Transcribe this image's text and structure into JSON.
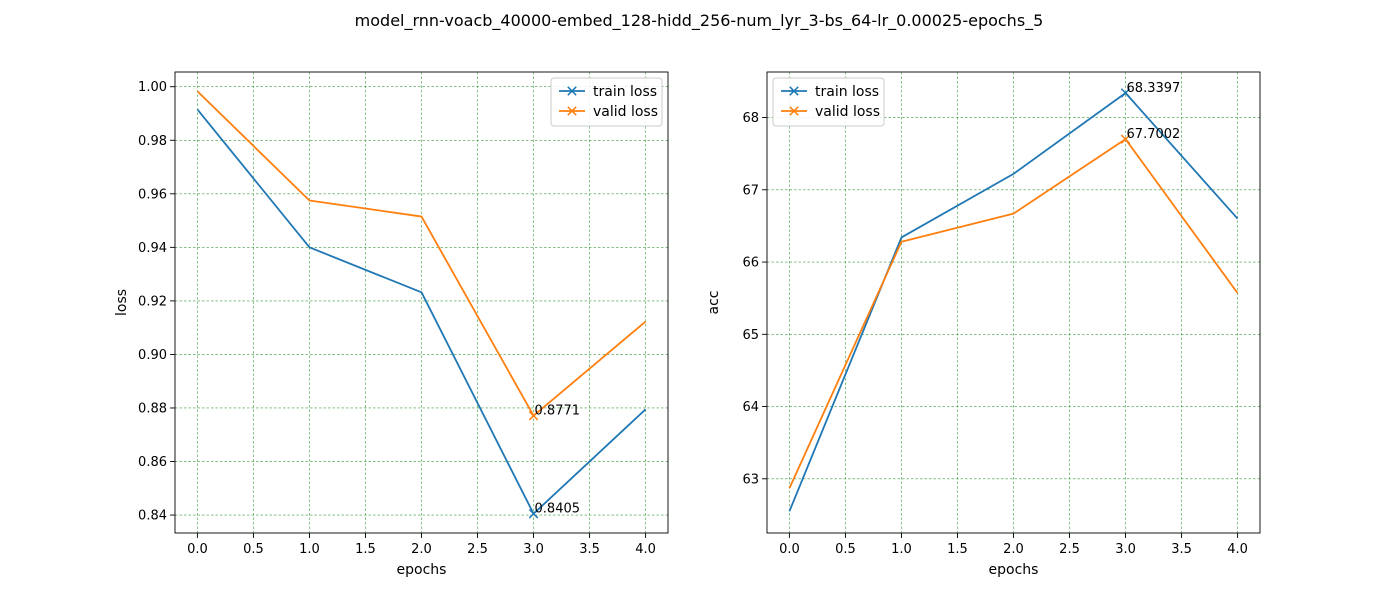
{
  "figure": {
    "suptitle": "model_rnn-voacb_40000-embed_128-hidd_256-num_lyr_3-bs_64-lr_0.00025-epochs_5"
  },
  "colors": {
    "train": "#1f77b4",
    "valid": "#ff7f0e",
    "grid": "#3a9a3a"
  },
  "chart_data": [
    {
      "type": "line",
      "xlabel": "epochs",
      "ylabel": "loss",
      "x": [
        0,
        1,
        2,
        3,
        4
      ],
      "xlim": [
        -0.2,
        4.2
      ],
      "ylim": [
        0.8333,
        1.0055
      ],
      "xticks": [
        "0.0",
        "0.5",
        "1.0",
        "1.5",
        "2.0",
        "2.5",
        "3.0",
        "3.5",
        "4.0"
      ],
      "yticks": [
        "0.84",
        "0.86",
        "0.88",
        "0.90",
        "0.92",
        "0.94",
        "0.96",
        "0.98",
        "1.00"
      ],
      "grid": true,
      "legend_position": "upper right",
      "series": [
        {
          "name": "train loss",
          "values": [
            0.9915,
            0.94,
            0.9232,
            0.8405,
            0.8795
          ]
        },
        {
          "name": "valid loss",
          "values": [
            0.9983,
            0.9575,
            0.9515,
            0.8771,
            0.9123
          ]
        }
      ],
      "annotations": [
        {
          "x": 3,
          "y": 0.8771,
          "text": "0.8771"
        },
        {
          "x": 3,
          "y": 0.8405,
          "text": "0.8405"
        }
      ]
    },
    {
      "type": "line",
      "xlabel": "epochs",
      "ylabel": "acc",
      "x": [
        0,
        1,
        2,
        3,
        4
      ],
      "xlim": [
        -0.2,
        4.2
      ],
      "ylim": [
        62.25,
        68.63
      ],
      "xticks": [
        "0.0",
        "0.5",
        "1.0",
        "1.5",
        "2.0",
        "2.5",
        "3.0",
        "3.5",
        "4.0"
      ],
      "yticks": [
        "63",
        "64",
        "65",
        "66",
        "67",
        "68"
      ],
      "grid": true,
      "legend_position": "upper left",
      "series": [
        {
          "name": "train loss",
          "values": [
            62.55,
            66.34,
            67.22,
            68.3397,
            66.6
          ]
        },
        {
          "name": "valid loss",
          "values": [
            62.87,
            66.28,
            66.67,
            67.7002,
            65.57
          ]
        }
      ],
      "annotations": [
        {
          "x": 3,
          "y": 68.3397,
          "text": "68.3397"
        },
        {
          "x": 3,
          "y": 67.7002,
          "text": "67.7002"
        }
      ]
    }
  ]
}
